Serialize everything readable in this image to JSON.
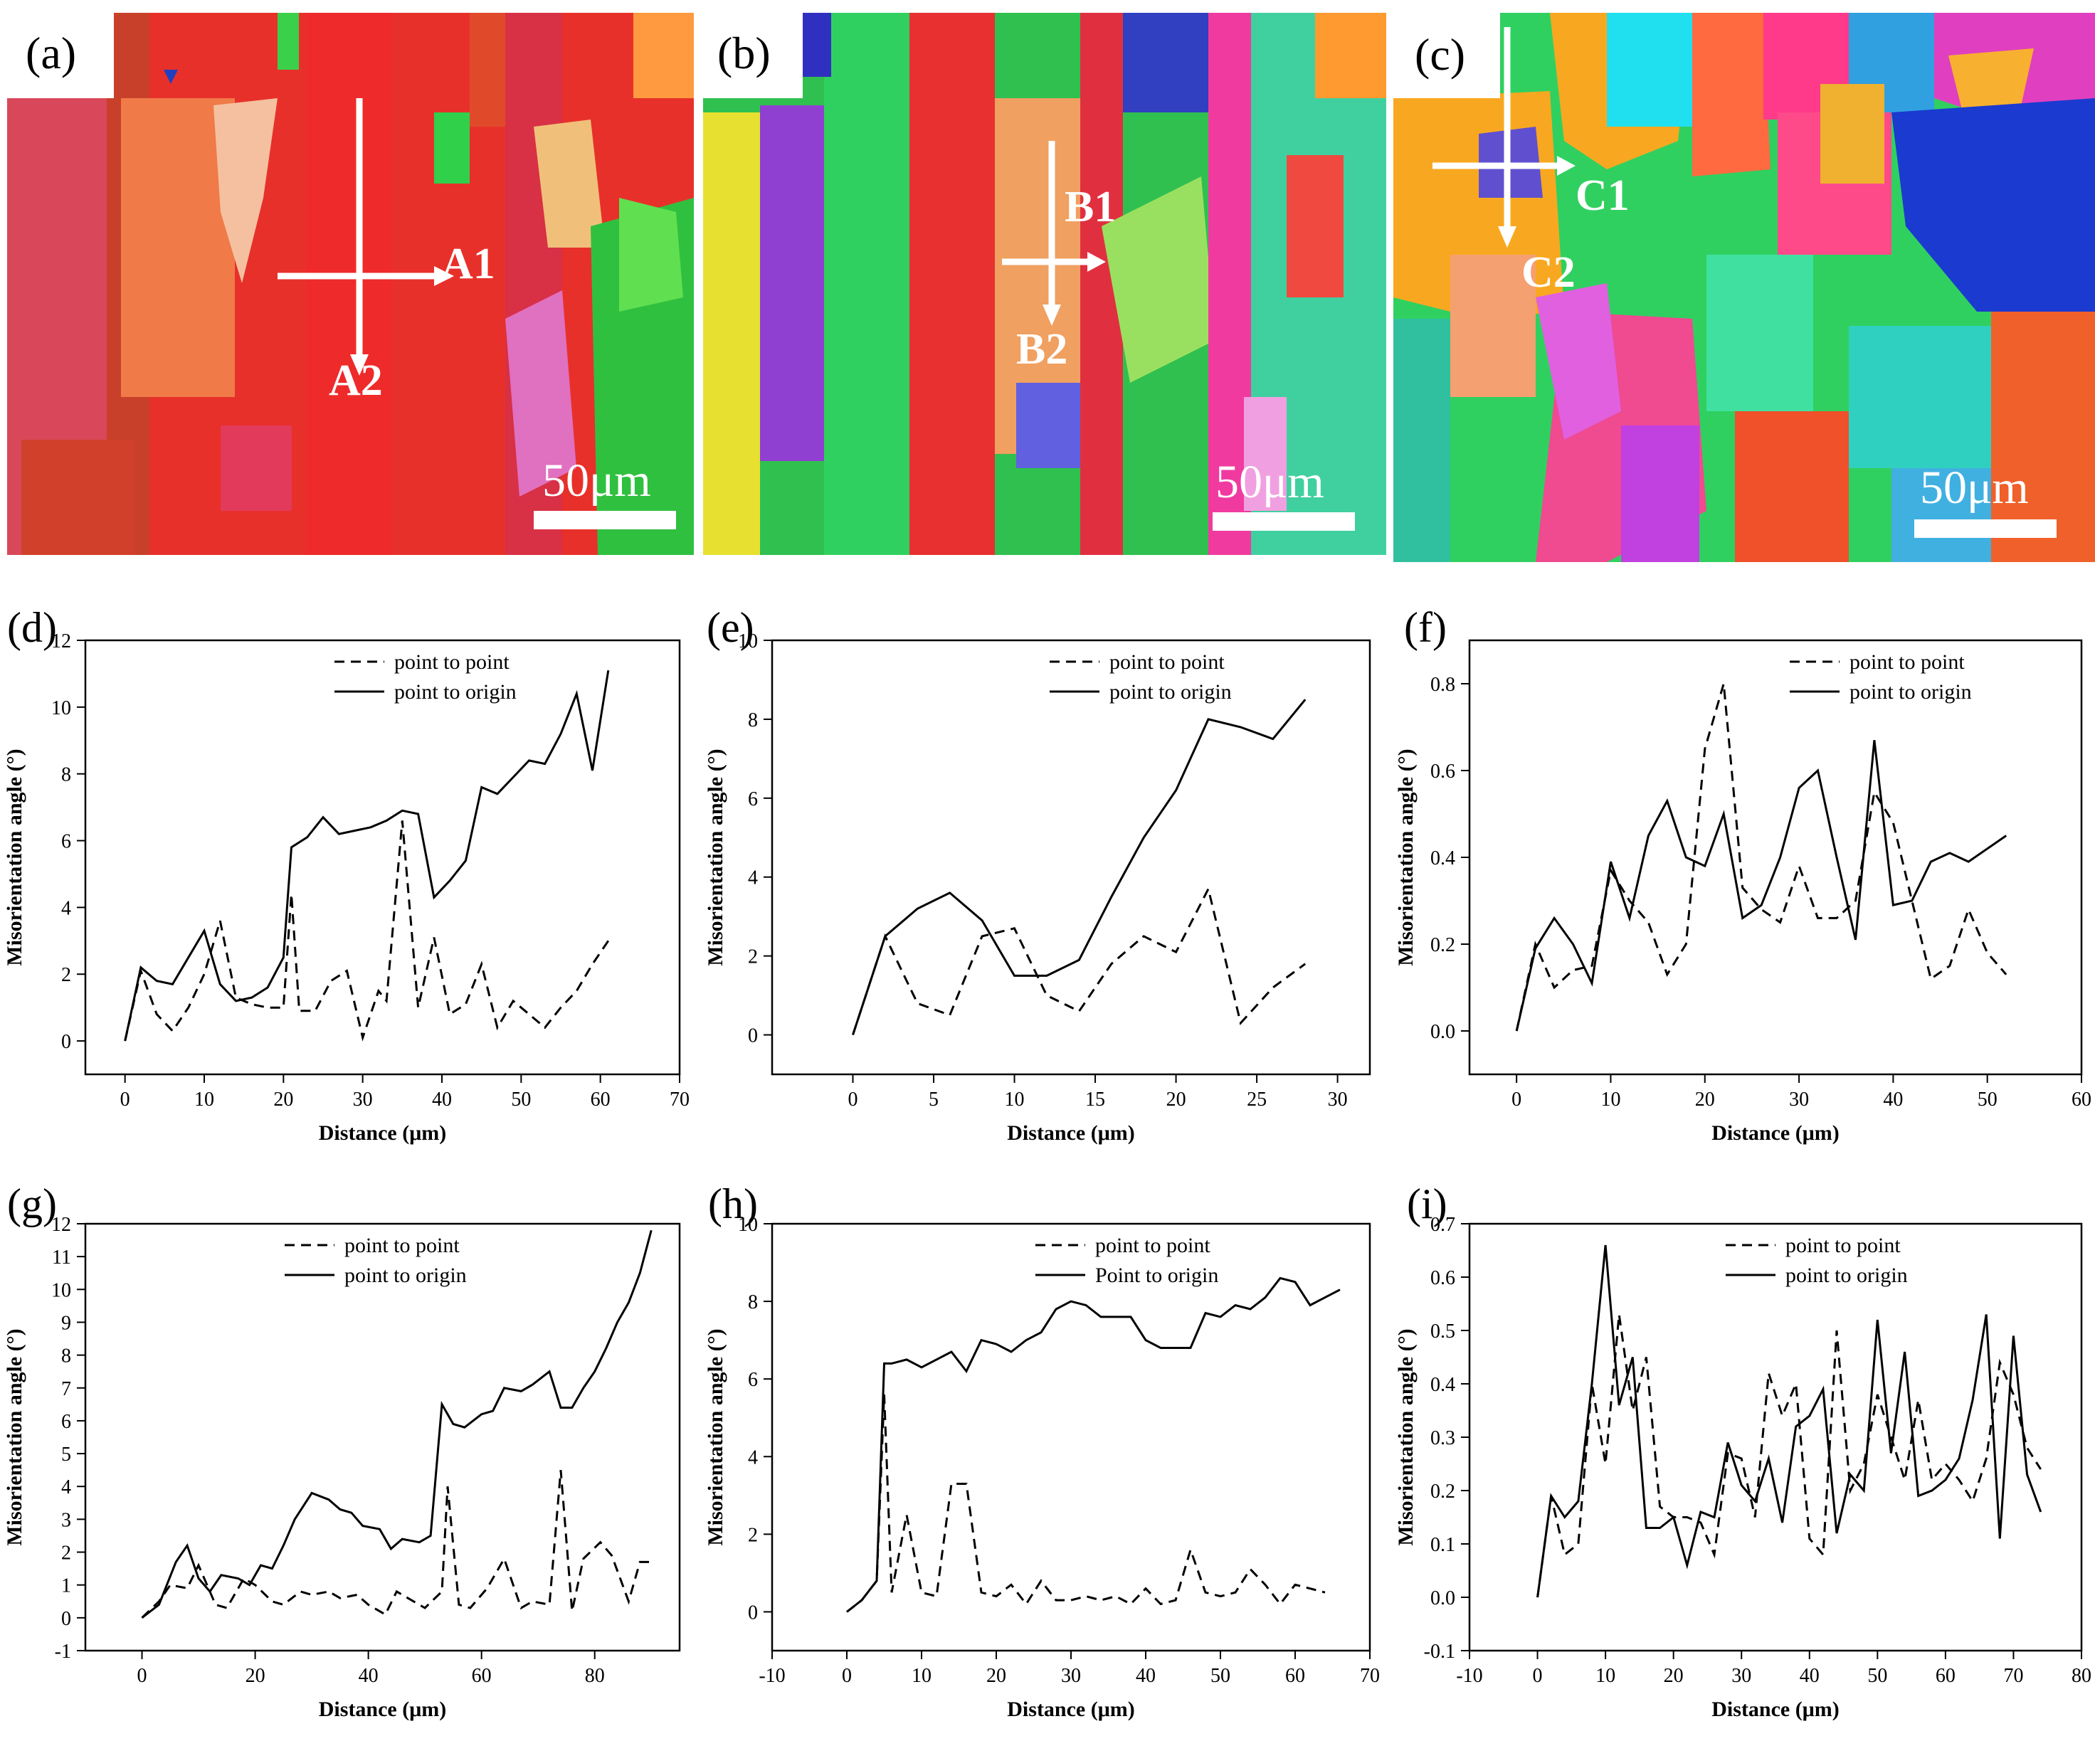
{
  "figure": {
    "panels_top": [
      {
        "letter": "(a)",
        "scale_bar": "50μm",
        "arrow_labels": [
          "A1",
          "A2"
        ]
      },
      {
        "letter": "(b)",
        "scale_bar": "50μm",
        "arrow_labels": [
          "B1",
          "B2"
        ]
      },
      {
        "letter": "(c)",
        "scale_bar": "50μm",
        "arrow_labels": [
          "C1",
          "C2"
        ]
      }
    ]
  },
  "chart_data": [
    {
      "panel": "(d)",
      "type": "line",
      "xlabel": "Distance (μm)",
      "ylabel": "Misorientation angle (°)",
      "xlim": [
        -5,
        70
      ],
      "ylim": [
        -1,
        12
      ],
      "xticks": [
        "0",
        "10",
        "20",
        "30",
        "40",
        "50",
        "60",
        "70"
      ],
      "yticks": [
        "0",
        "2",
        "4",
        "6",
        "8",
        "10",
        "12"
      ],
      "legend": "top-center",
      "series": [
        {
          "name": "point to point",
          "style": "dashed",
          "x": [
            0,
            2,
            4,
            6,
            8,
            10,
            12,
            14,
            16,
            18,
            20,
            21,
            22,
            24,
            26,
            28,
            30,
            32,
            33,
            35,
            37,
            39,
            41,
            43,
            45,
            47,
            49,
            51,
            53,
            55,
            57,
            59,
            61
          ],
          "y": [
            0,
            2.1,
            0.8,
            0.3,
            1.0,
            2.0,
            3.6,
            1.3,
            1.1,
            1.0,
            1.0,
            4.4,
            0.9,
            0.9,
            1.8,
            2.1,
            0.1,
            1.5,
            1.2,
            6.6,
            1.0,
            3.1,
            0.8,
            1.1,
            2.3,
            0.4,
            1.2,
            0.8,
            0.4,
            1.0,
            1.5,
            2.3,
            3.0
          ]
        },
        {
          "name": "point to origin",
          "style": "solid",
          "x": [
            0,
            2,
            4,
            6,
            8,
            10,
            12,
            14,
            16,
            18,
            20,
            21,
            23,
            25,
            27,
            29,
            31,
            33,
            35,
            37,
            39,
            41,
            43,
            45,
            47,
            49,
            51,
            53,
            55,
            57,
            59,
            61
          ],
          "y": [
            0,
            2.2,
            1.8,
            1.7,
            2.5,
            3.3,
            1.7,
            1.2,
            1.3,
            1.6,
            2.5,
            5.8,
            6.1,
            6.7,
            6.2,
            6.3,
            6.4,
            6.6,
            6.9,
            6.8,
            4.3,
            4.8,
            5.4,
            7.6,
            7.4,
            7.9,
            8.4,
            8.3,
            9.2,
            10.4,
            8.1,
            11.1
          ]
        }
      ]
    },
    {
      "panel": "(e)",
      "type": "line",
      "xlabel": "Distance (μm)",
      "ylabel": "Misorientation angle (°)",
      "xlim": [
        -5,
        32
      ],
      "ylim": [
        -1,
        10
      ],
      "xticks": [
        "0",
        "5",
        "10",
        "15",
        "20",
        "25",
        "30"
      ],
      "yticks": [
        "0",
        "2",
        "4",
        "6",
        "8",
        "10"
      ],
      "legend": "top-right",
      "series": [
        {
          "name": "point to point",
          "style": "dashed",
          "x": [
            0,
            2,
            4,
            6,
            8,
            10,
            12,
            14,
            16,
            18,
            20,
            22,
            24,
            26,
            28
          ],
          "y": [
            0,
            2.5,
            0.8,
            0.5,
            2.5,
            2.7,
            1.0,
            0.6,
            1.8,
            2.5,
            2.1,
            3.7,
            0.3,
            1.2,
            1.8
          ]
        },
        {
          "name": "point to origin",
          "style": "solid",
          "x": [
            0,
            2,
            4,
            6,
            8,
            10,
            12,
            14,
            16,
            18,
            20,
            22,
            24,
            26,
            28
          ],
          "y": [
            0,
            2.5,
            3.2,
            3.6,
            2.9,
            1.5,
            1.5,
            1.9,
            3.5,
            5.0,
            6.2,
            8.0,
            7.8,
            7.5,
            8.5
          ]
        }
      ]
    },
    {
      "panel": "(f)",
      "type": "line",
      "xlabel": "Distance (μm)",
      "ylabel": "Misorientation angle (°)",
      "xlim": [
        -5,
        60
      ],
      "ylim": [
        -0.1,
        0.9
      ],
      "xticks": [
        "0",
        "10",
        "20",
        "30",
        "40",
        "50",
        "60"
      ],
      "yticks": [
        "0.0",
        "0.2",
        "0.4",
        "0.6",
        "0.8"
      ],
      "legend": "top-right",
      "series": [
        {
          "name": "point to point",
          "style": "dashed",
          "x": [
            0,
            2,
            4,
            6,
            8,
            10,
            12,
            14,
            16,
            18,
            20,
            22,
            24,
            26,
            28,
            30,
            32,
            34,
            36,
            38,
            40,
            42,
            44,
            46,
            48,
            50,
            52
          ],
          "y": [
            0,
            0.2,
            0.1,
            0.14,
            0.15,
            0.37,
            0.3,
            0.25,
            0.13,
            0.2,
            0.65,
            0.8,
            0.33,
            0.28,
            0.25,
            0.38,
            0.26,
            0.26,
            0.3,
            0.55,
            0.48,
            0.3,
            0.12,
            0.15,
            0.28,
            0.18,
            0.13
          ]
        },
        {
          "name": "point to origin",
          "style": "solid",
          "x": [
            0,
            2,
            4,
            6,
            8,
            10,
            12,
            14,
            16,
            18,
            20,
            22,
            24,
            26,
            28,
            30,
            32,
            34,
            36,
            38,
            40,
            42,
            44,
            46,
            48,
            50,
            52
          ],
          "y": [
            0,
            0.19,
            0.26,
            0.2,
            0.11,
            0.39,
            0.26,
            0.45,
            0.53,
            0.4,
            0.38,
            0.5,
            0.26,
            0.29,
            0.4,
            0.56,
            0.6,
            0.4,
            0.21,
            0.67,
            0.29,
            0.3,
            0.39,
            0.41,
            0.39,
            0.42,
            0.45
          ]
        }
      ]
    },
    {
      "panel": "(g)",
      "type": "line",
      "xlabel": "Distance (μm)",
      "ylabel": "Misorientation angle (°)",
      "xlim": [
        -10,
        95
      ],
      "ylim": [
        -1,
        12
      ],
      "xticks": [
        "0",
        "20",
        "40",
        "60",
        "80"
      ],
      "yticks": [
        "-1",
        "0",
        "1",
        "2",
        "3",
        "4",
        "5",
        "6",
        "7",
        "8",
        "9",
        "10",
        "11",
        "12"
      ],
      "legend": "top-center",
      "series": [
        {
          "name": "point to point",
          "style": "dashed",
          "x": [
            0,
            3,
            5,
            8,
            10,
            13,
            15,
            18,
            20,
            23,
            25,
            28,
            30,
            33,
            35,
            38,
            40,
            43,
            45,
            48,
            50,
            53,
            54,
            56,
            58,
            61,
            64,
            67,
            69,
            72,
            74,
            76,
            78,
            81,
            83,
            86,
            88,
            90
          ],
          "y": [
            0,
            0.5,
            1.0,
            0.9,
            1.6,
            0.4,
            0.3,
            1.2,
            1.0,
            0.5,
            0.4,
            0.8,
            0.7,
            0.8,
            0.6,
            0.7,
            0.4,
            0.1,
            0.8,
            0.5,
            0.3,
            0.8,
            4.0,
            0.4,
            0.3,
            0.9,
            1.8,
            0.3,
            0.5,
            0.4,
            4.5,
            0.2,
            1.8,
            2.3,
            1.9,
            0.5,
            1.7,
            1.7
          ]
        },
        {
          "name": "point to origin",
          "style": "solid",
          "x": [
            0,
            3,
            6,
            8,
            10,
            12,
            14,
            17,
            19,
            21,
            23,
            25,
            27,
            30,
            33,
            35,
            37,
            39,
            42,
            44,
            46,
            49,
            51,
            53,
            55,
            57,
            60,
            62,
            64,
            67,
            69,
            72,
            74,
            76,
            78,
            80,
            82,
            84,
            86,
            88,
            90
          ],
          "y": [
            0,
            0.4,
            1.7,
            2.2,
            1.2,
            0.8,
            1.3,
            1.2,
            1.0,
            1.6,
            1.5,
            2.2,
            3.0,
            3.8,
            3.6,
            3.3,
            3.2,
            2.8,
            2.7,
            2.1,
            2.4,
            2.3,
            2.5,
            6.5,
            5.9,
            5.8,
            6.2,
            6.3,
            7.0,
            6.9,
            7.1,
            7.5,
            6.4,
            6.4,
            7.0,
            7.5,
            8.2,
            9.0,
            9.6,
            10.5,
            11.8
          ]
        }
      ]
    },
    {
      "panel": "(h)",
      "type": "line",
      "xlabel": "Distance (μm)",
      "ylabel": "Misorientation angle (°)",
      "xlim": [
        -10,
        70
      ],
      "ylim": [
        -1,
        10
      ],
      "xticks": [
        "-10",
        "0",
        "10",
        "20",
        "30",
        "40",
        "50",
        "60",
        "70"
      ],
      "yticks": [
        "0",
        "2",
        "4",
        "6",
        "8",
        "10"
      ],
      "legend": "top-right",
      "series": [
        {
          "name": "point to point",
          "style": "dashed",
          "x": [
            0,
            2,
            4,
            5,
            6,
            8,
            10,
            12,
            14,
            16,
            18,
            20,
            22,
            24,
            26,
            28,
            30,
            32,
            34,
            36,
            38,
            40,
            42,
            44,
            46,
            48,
            50,
            52,
            54,
            56,
            58,
            60,
            62,
            64
          ],
          "y": [
            0,
            0.3,
            0.8,
            5.6,
            0.5,
            2.5,
            0.5,
            0.4,
            3.3,
            3.3,
            0.5,
            0.4,
            0.7,
            0.2,
            0.8,
            0.3,
            0.3,
            0.4,
            0.3,
            0.4,
            0.2,
            0.6,
            0.2,
            0.3,
            1.6,
            0.5,
            0.4,
            0.5,
            1.1,
            0.7,
            0.2,
            0.7,
            0.6,
            0.5
          ]
        },
        {
          "name": "Point to origin",
          "style": "solid",
          "x": [
            0,
            2,
            4,
            5,
            6,
            8,
            10,
            12,
            14,
            16,
            18,
            20,
            22,
            24,
            26,
            28,
            30,
            32,
            34,
            36,
            38,
            40,
            42,
            44,
            46,
            48,
            50,
            52,
            54,
            56,
            58,
            60,
            62,
            64,
            66
          ],
          "y": [
            0,
            0.3,
            0.8,
            6.4,
            6.4,
            6.5,
            6.3,
            6.5,
            6.7,
            6.2,
            7.0,
            6.9,
            6.7,
            7.0,
            7.2,
            7.8,
            8.0,
            7.9,
            7.6,
            7.6,
            7.6,
            7.0,
            6.8,
            6.8,
            6.8,
            7.7,
            7.6,
            7.9,
            7.8,
            8.1,
            8.6,
            8.5,
            7.9,
            8.1,
            8.3
          ]
        }
      ]
    },
    {
      "panel": "(i)",
      "type": "line",
      "xlabel": "Distance (μm)",
      "ylabel": "Misorientation angle (°)",
      "xlim": [
        -10,
        80
      ],
      "ylim": [
        -0.1,
        0.7
      ],
      "xticks": [
        "-10",
        "0",
        "10",
        "20",
        "30",
        "40",
        "50",
        "60",
        "70",
        "80"
      ],
      "yticks": [
        "-0.1",
        "0.0",
        "0.1",
        "0.2",
        "0.3",
        "0.4",
        "0.5",
        "0.6",
        "0.7"
      ],
      "legend": "top-right",
      "series": [
        {
          "name": "point to point",
          "style": "dashed",
          "x": [
            0,
            2,
            4,
            6,
            8,
            10,
            12,
            14,
            16,
            18,
            20,
            22,
            24,
            26,
            28,
            30,
            32,
            34,
            36,
            38,
            40,
            42,
            44,
            46,
            48,
            50,
            52,
            54,
            56,
            58,
            60,
            62,
            64,
            66,
            68,
            70,
            72,
            74
          ],
          "y": [
            0,
            0.19,
            0.08,
            0.1,
            0.4,
            0.25,
            0.53,
            0.35,
            0.45,
            0.17,
            0.15,
            0.15,
            0.14,
            0.08,
            0.27,
            0.26,
            0.15,
            0.42,
            0.34,
            0.4,
            0.11,
            0.08,
            0.5,
            0.2,
            0.25,
            0.38,
            0.3,
            0.22,
            0.37,
            0.22,
            0.25,
            0.22,
            0.18,
            0.26,
            0.44,
            0.38,
            0.28,
            0.24
          ]
        },
        {
          "name": "point to origin",
          "style": "solid",
          "x": [
            0,
            2,
            4,
            6,
            8,
            10,
            12,
            14,
            16,
            18,
            20,
            22,
            24,
            26,
            28,
            30,
            32,
            34,
            36,
            38,
            40,
            42,
            44,
            46,
            48,
            50,
            52,
            54,
            56,
            58,
            60,
            62,
            64,
            66,
            68,
            70,
            72,
            74
          ],
          "y": [
            0,
            0.19,
            0.15,
            0.18,
            0.4,
            0.66,
            0.36,
            0.45,
            0.13,
            0.13,
            0.15,
            0.06,
            0.16,
            0.15,
            0.29,
            0.21,
            0.18,
            0.26,
            0.14,
            0.32,
            0.34,
            0.39,
            0.12,
            0.23,
            0.2,
            0.52,
            0.27,
            0.46,
            0.19,
            0.2,
            0.22,
            0.26,
            0.37,
            0.53,
            0.11,
            0.49,
            0.23,
            0.16
          ]
        }
      ]
    }
  ]
}
